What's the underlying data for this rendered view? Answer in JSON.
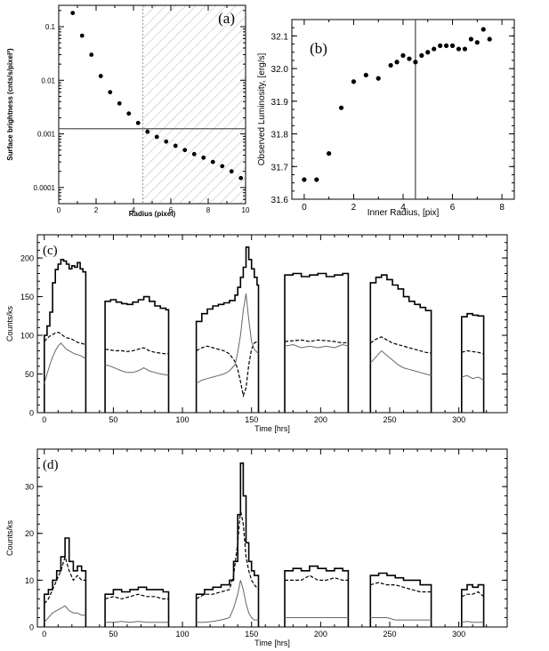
{
  "chart_data": [
    {
      "panel": "(a)",
      "type": "scatter",
      "xlabel": "Radius (pixel)",
      "ylabel": "Surface brightness (cnts/s/pixel²)",
      "xlim": [
        0,
        10
      ],
      "ylim": [
        5e-05,
        0.25
      ],
      "yscale": "log",
      "xticks": [
        0,
        2,
        4,
        6,
        8,
        10
      ],
      "yticks": [
        0.0001,
        0.001,
        0.01,
        0.1
      ],
      "ytick_labels": [
        "0.0001",
        "0.001",
        "0.01",
        "0.1"
      ],
      "x": [
        0.75,
        1.25,
        1.75,
        2.25,
        2.75,
        3.25,
        3.75,
        4.25,
        4.75,
        5.25,
        5.75,
        6.25,
        6.75,
        7.25,
        7.75,
        8.25,
        8.75,
        9.25,
        9.75
      ],
      "y": [
        0.18,
        0.068,
        0.03,
        0.012,
        0.006,
        0.0037,
        0.0024,
        0.0016,
        0.0011,
        0.00088,
        0.00072,
        0.0006,
        0.0005,
        0.00042,
        0.00036,
        0.0003,
        0.00025,
        0.0002,
        0.00015
      ],
      "background_level": 0.00125,
      "hatched_region": [
        4.5,
        10
      ],
      "grid": false
    },
    {
      "panel": "(b)",
      "type": "scatter",
      "xlabel": "Inner Radius, [pix]",
      "ylabel": "Observed Luminosity, [erg/s]",
      "xlim": [
        -0.5,
        8.5
      ],
      "ylim": [
        31.6,
        32.15
      ],
      "xticks": [
        0,
        2,
        4,
        6,
        8
      ],
      "yticks": [
        31.6,
        31.7,
        31.8,
        31.9,
        32.0,
        32.1
      ],
      "ytick_labels": [
        "31.6",
        "31.7",
        "31.8",
        "31.9",
        "32.0",
        "32.1"
      ],
      "x": [
        0,
        0.5,
        1.0,
        1.5,
        2.0,
        2.5,
        3.0,
        3.5,
        3.75,
        4.0,
        4.25,
        4.5,
        4.75,
        5.0,
        5.25,
        5.5,
        5.75,
        6.0,
        6.25,
        6.5,
        6.75,
        7.0,
        7.25,
        7.5
      ],
      "y": [
        31.66,
        31.66,
        31.74,
        31.88,
        31.96,
        31.98,
        31.97,
        32.01,
        32.02,
        32.04,
        32.03,
        32.02,
        32.04,
        32.05,
        32.06,
        32.07,
        32.07,
        32.07,
        32.06,
        32.06,
        32.09,
        32.08,
        32.12,
        32.09
      ],
      "vertical_line_x": 4.5,
      "grid": false
    },
    {
      "panel": "(c)",
      "type": "line",
      "xlabel": "Time [hrs]",
      "ylabel": "Counts/ks",
      "xlim": [
        -5,
        335
      ],
      "ylim": [
        0,
        230
      ],
      "xticks": [
        0,
        50,
        100,
        150,
        200,
        250,
        300
      ],
      "yticks": [
        0,
        50,
        100,
        150,
        200
      ],
      "segments": [
        {
          "t": [
            0,
            2,
            4,
            6,
            8,
            10,
            12,
            14,
            16,
            18,
            20,
            22,
            24,
            26,
            28,
            30
          ],
          "total": [
            100,
            112,
            130,
            168,
            185,
            192,
            198,
            196,
            192,
            186,
            190,
            188,
            194,
            186,
            182,
            178
          ],
          "dashed": [
            92,
            96,
            99,
            101,
            103,
            104,
            102,
            99,
            97,
            96,
            95,
            93,
            91,
            90,
            89,
            88
          ],
          "thin": [
            38,
            50,
            62,
            72,
            80,
            86,
            90,
            86,
            82,
            80,
            78,
            76,
            75,
            74,
            72,
            70
          ]
        },
        {
          "t": [
            44,
            48,
            52,
            56,
            60,
            64,
            68,
            72,
            76,
            80,
            84,
            88,
            90
          ],
          "total": [
            144,
            146,
            143,
            141,
            140,
            143,
            146,
            150,
            144,
            138,
            135,
            133,
            131
          ],
          "dashed": [
            82,
            81,
            80,
            80,
            79,
            80,
            82,
            84,
            80,
            78,
            77,
            76,
            76
          ],
          "thin": [
            62,
            60,
            57,
            54,
            52,
            52,
            54,
            58,
            54,
            52,
            50,
            49,
            48
          ]
        },
        {
          "t": [
            110,
            114,
            118,
            122,
            126,
            130,
            134,
            138,
            140,
            142,
            144,
            146,
            148,
            150,
            152,
            154,
            155
          ],
          "total": [
            118,
            128,
            134,
            138,
            140,
            142,
            145,
            152,
            162,
            175,
            188,
            214,
            198,
            186,
            175,
            165,
            158
          ],
          "dashed": [
            80,
            84,
            86,
            84,
            82,
            80,
            76,
            66,
            56,
            40,
            22,
            32,
            62,
            82,
            90,
            92,
            92
          ],
          "thin": [
            38,
            42,
            44,
            46,
            48,
            50,
            54,
            62,
            78,
            100,
            132,
            154,
            120,
            92,
            82,
            78,
            76
          ]
        },
        {
          "t": [
            174,
            180,
            186,
            192,
            198,
            204,
            210,
            216,
            220
          ],
          "total": [
            178,
            180,
            176,
            178,
            180,
            176,
            178,
            180,
            176
          ],
          "dashed": [
            92,
            93,
            94,
            92,
            94,
            93,
            92,
            90,
            91
          ],
          "thin": [
            86,
            88,
            84,
            86,
            84,
            86,
            84,
            88,
            86
          ]
        },
        {
          "t": [
            236,
            240,
            244,
            248,
            252,
            256,
            260,
            264,
            268,
            272,
            276,
            280
          ],
          "total": [
            168,
            175,
            178,
            172,
            165,
            160,
            150,
            144,
            140,
            136,
            132,
            130
          ],
          "dashed": [
            90,
            95,
            98,
            94,
            90,
            88,
            86,
            84,
            82,
            80,
            78,
            77
          ],
          "thin": [
            64,
            72,
            80,
            74,
            68,
            62,
            58,
            56,
            54,
            52,
            50,
            48
          ]
        },
        {
          "t": [
            302,
            306,
            310,
            314,
            318
          ],
          "total": [
            124,
            128,
            126,
            125,
            118
          ],
          "dashed": [
            78,
            80,
            79,
            78,
            76
          ],
          "thin": [
            46,
            48,
            44,
            46,
            42
          ]
        }
      ],
      "grid": false
    },
    {
      "panel": "(d)",
      "type": "line",
      "xlabel": "Time [hrs]",
      "ylabel": "Counts/ks",
      "xlim": [
        -5,
        335
      ],
      "ylim": [
        0,
        38
      ],
      "xticks": [
        0,
        50,
        100,
        150,
        200,
        250,
        300
      ],
      "yticks": [
        0,
        10,
        20,
        30
      ],
      "segments": [
        {
          "t": [
            0,
            3,
            6,
            9,
            12,
            15,
            18,
            21,
            24,
            27,
            30
          ],
          "total": [
            7,
            8,
            10,
            12,
            15,
            19,
            14,
            12,
            13,
            12,
            11
          ],
          "dashed": [
            5,
            6,
            8,
            10,
            12,
            15,
            12,
            10,
            11,
            10,
            10
          ],
          "thin": [
            1,
            2,
            3,
            3.5,
            4,
            4.5,
            3.5,
            3,
            3,
            2.5,
            2.5
          ]
        },
        {
          "t": [
            44,
            50,
            56,
            62,
            68,
            74,
            80,
            86,
            90
          ],
          "total": [
            7,
            8,
            7.5,
            8,
            8.5,
            8,
            8,
            7.5,
            7
          ],
          "dashed": [
            6,
            6.5,
            6,
            6.5,
            7,
            6.5,
            6.5,
            6,
            6
          ],
          "thin": [
            1,
            1,
            1.2,
            1,
            1.2,
            1,
            1,
            1,
            1
          ]
        },
        {
          "t": [
            110,
            116,
            122,
            128,
            134,
            137,
            140,
            142,
            144,
            146,
            148,
            150,
            152,
            155
          ],
          "total": [
            7,
            8,
            8.5,
            9,
            10,
            14,
            24,
            35,
            28,
            18,
            14,
            12,
            11,
            10
          ],
          "dashed": [
            6,
            7,
            7,
            7.5,
            8,
            11,
            18,
            25,
            22,
            15,
            12,
            10,
            9,
            8
          ],
          "thin": [
            1,
            1,
            1.2,
            1.5,
            2,
            4,
            7,
            10,
            8,
            5,
            3,
            2,
            1.5,
            1.5
          ]
        },
        {
          "t": [
            174,
            180,
            186,
            192,
            198,
            204,
            210,
            216,
            220
          ],
          "total": [
            12,
            12.5,
            12,
            13,
            12.5,
            12,
            12.5,
            12,
            12
          ],
          "dashed": [
            10,
            10,
            10,
            11,
            10,
            10,
            10.5,
            10,
            10
          ],
          "thin": [
            2,
            2,
            2,
            2,
            2,
            2,
            2,
            2,
            2
          ]
        },
        {
          "t": [
            236,
            242,
            248,
            254,
            260,
            266,
            272,
            278,
            280
          ],
          "total": [
            11,
            11.5,
            11,
            10.5,
            10,
            10,
            9,
            9,
            9
          ],
          "dashed": [
            9,
            9.5,
            9,
            9,
            8.5,
            8,
            7.5,
            7.5,
            7.5
          ],
          "thin": [
            2,
            2,
            2,
            1.5,
            1.5,
            1.5,
            1.5,
            1.5,
            1.5
          ]
        },
        {
          "t": [
            302,
            306,
            310,
            314,
            318
          ],
          "total": [
            8,
            9,
            8.5,
            9,
            8
          ],
          "dashed": [
            6.5,
            7,
            7,
            7.5,
            6.5
          ],
          "thin": [
            1,
            1.2,
            1,
            1,
            1
          ]
        }
      ],
      "grid": false
    }
  ]
}
